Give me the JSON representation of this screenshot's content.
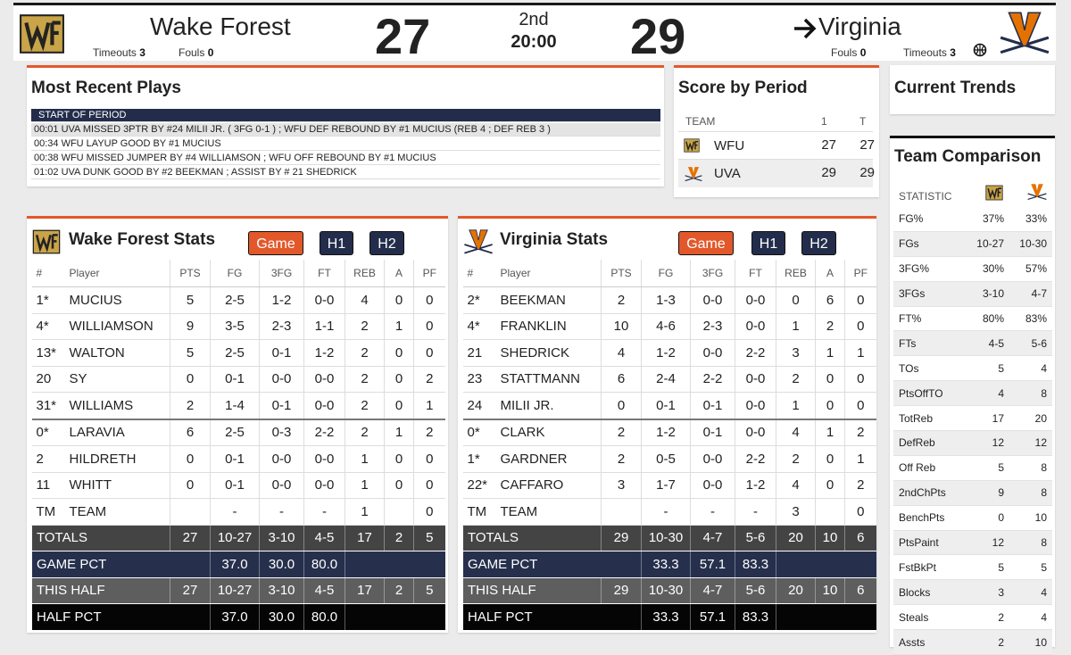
{
  "header": {
    "home": {
      "name": "Wake Forest",
      "score": 27,
      "timeouts_label": "Timeouts",
      "timeouts": 3,
      "fouls_label": "Fouls",
      "fouls": 0
    },
    "period": "2nd",
    "clock": "20:00",
    "away": {
      "name": "Virginia",
      "score": 29,
      "timeouts_label": "Timeouts",
      "timeouts": 3,
      "fouls_label": "Fouls",
      "fouls": 0
    }
  },
  "plays": {
    "title": "Most Recent Plays",
    "items": [
      "START OF PERIOD",
      "00:01 UVA MISSED 3PTR BY #24 MILII JR. ( 3FG 0-1 ) ; WFU DEF REBOUND BY #1 MUCIUS (REB 4 ; DEF REB 3 )",
      "00:34 WFU LAYUP GOOD BY #1 MUCIUS",
      "00:38 WFU MISSED JUMPER BY #4 WILLIAMSON ; WFU OFF REBOUND BY #1 MUCIUS",
      "01:02 UVA DUNK GOOD BY #2 BEEKMAN ; ASSIST BY # 21 SHEDRICK"
    ]
  },
  "score_by_period": {
    "title": "Score by Period",
    "columns": [
      "TEAM",
      "1",
      "T"
    ],
    "rows": [
      [
        "WFU",
        27,
        27
      ],
      [
        "UVA",
        29,
        29
      ]
    ]
  },
  "trends": {
    "title": "Current Trends"
  },
  "comparison": {
    "title": "Team Comparison",
    "column": "STATISTIC",
    "rows": [
      [
        "FG%",
        "37%",
        "33%"
      ],
      [
        "FGs",
        "10-27",
        "10-30"
      ],
      [
        "3FG%",
        "30%",
        "57%"
      ],
      [
        "3FGs",
        "3-10",
        "4-7"
      ],
      [
        "FT%",
        "80%",
        "83%"
      ],
      [
        "FTs",
        "4-5",
        "5-6"
      ],
      [
        "TOs",
        5,
        4
      ],
      [
        "PtsOffTO",
        4,
        8
      ],
      [
        "TotReb",
        17,
        20
      ],
      [
        "DefReb",
        12,
        12
      ],
      [
        "Off Reb",
        5,
        8
      ],
      [
        "2ndChPts",
        9,
        8
      ],
      [
        "BenchPts",
        0,
        10
      ],
      [
        "PtsPaint",
        12,
        8
      ],
      [
        "FstBkPt",
        5,
        5
      ],
      [
        "Blocks",
        3,
        4
      ],
      [
        "Steals",
        2,
        4
      ],
      [
        "Assts",
        2,
        10
      ]
    ]
  },
  "home_stats": {
    "title": "Wake Forest Stats",
    "buttons": [
      "Game",
      "H1",
      "H2"
    ],
    "columns": [
      "#",
      "Player",
      "PTS",
      "FG",
      "3FG",
      "FT",
      "REB",
      "A",
      "PF"
    ],
    "rows": [
      [
        "1*",
        "MUCIUS",
        5,
        "2-5",
        "1-2",
        "0-0",
        4,
        0,
        0
      ],
      [
        "4*",
        "WILLIAMSON",
        9,
        "3-5",
        "2-3",
        "1-1",
        2,
        1,
        0
      ],
      [
        "13*",
        "WALTON",
        5,
        "2-5",
        "0-1",
        "1-2",
        2,
        0,
        0
      ],
      [
        "20",
        "SY",
        0,
        "0-1",
        "0-0",
        "0-0",
        2,
        0,
        2
      ],
      [
        "31*",
        "WILLIAMS",
        2,
        "1-4",
        "0-1",
        "0-0",
        2,
        0,
        1
      ],
      [
        "0*",
        "LARAVIA",
        6,
        "2-5",
        "0-3",
        "2-2",
        2,
        1,
        2
      ],
      [
        "2",
        "HILDRETH",
        0,
        "0-1",
        "0-0",
        "0-0",
        1,
        0,
        0
      ],
      [
        "11",
        "WHITT",
        0,
        "0-1",
        "0-0",
        "0-0",
        1,
        0,
        0
      ],
      [
        "TM",
        "TEAM",
        null,
        "-",
        "-",
        "-",
        1,
        null,
        0
      ]
    ],
    "summary": [
      [
        "TOTALS",
        27,
        "10-27",
        "3-10",
        "4-5",
        17,
        2,
        5
      ],
      [
        "GAME PCT",
        "37.0",
        "30.0",
        "80.0"
      ],
      [
        "THIS HALF",
        27,
        "10-27",
        "3-10",
        "4-5",
        17,
        2,
        5
      ],
      [
        "HALF PCT",
        "37.0",
        "30.0",
        "80.0"
      ]
    ]
  },
  "away_stats": {
    "title": "Virginia Stats",
    "buttons": [
      "Game",
      "H1",
      "H2"
    ],
    "columns": [
      "#",
      "Player",
      "PTS",
      "FG",
      "3FG",
      "FT",
      "REB",
      "A",
      "PF"
    ],
    "rows": [
      [
        "2*",
        "BEEKMAN",
        2,
        "1-3",
        "0-0",
        "0-0",
        0,
        6,
        0
      ],
      [
        "4*",
        "FRANKLIN",
        10,
        "4-6",
        "2-3",
        "0-0",
        1,
        2,
        0
      ],
      [
        "21",
        "SHEDRICK",
        4,
        "1-2",
        "0-0",
        "2-2",
        3,
        1,
        1
      ],
      [
        "23",
        "STATTMANN",
        6,
        "2-4",
        "2-2",
        "0-0",
        2,
        0,
        0
      ],
      [
        "24",
        "MILII JR.",
        0,
        "0-1",
        "0-1",
        "0-0",
        1,
        0,
        0
      ],
      [
        "0*",
        "CLARK",
        2,
        "1-2",
        "0-1",
        "0-0",
        4,
        1,
        2
      ],
      [
        "1*",
        "GARDNER",
        2,
        "0-5",
        "0-0",
        "2-2",
        2,
        0,
        1
      ],
      [
        "22*",
        "CAFFARO",
        3,
        "1-7",
        "0-0",
        "1-2",
        4,
        0,
        2
      ],
      [
        "TM",
        "TEAM",
        null,
        "-",
        "-",
        "-",
        3,
        null,
        0
      ]
    ],
    "summary": [
      [
        "TOTALS",
        29,
        "10-30",
        "4-7",
        "5-6",
        20,
        10,
        6
      ],
      [
        "GAME PCT",
        "33.3",
        "57.1",
        "83.3"
      ],
      [
        "THIS HALF",
        29,
        "10-30",
        "4-7",
        "5-6",
        20,
        10,
        6
      ],
      [
        "HALF PCT",
        "33.3",
        "57.1",
        "83.3"
      ]
    ]
  }
}
